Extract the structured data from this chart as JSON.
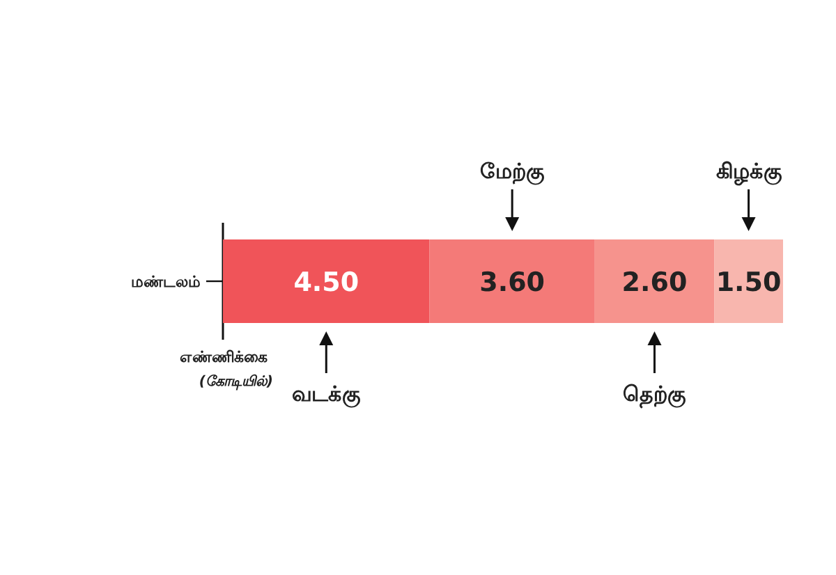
{
  "chart_data": {
    "type": "bar",
    "orientation": "horizontal",
    "stacked": true,
    "categories": [
      "மண்டலம்"
    ],
    "xlabel": "எண்ணிக்கை (கோடியில்)",
    "series": [
      {
        "name": "வடக்கு",
        "color": "#f05459",
        "values": [
          4.5
        ],
        "value_labels": [
          "4.50"
        ]
      },
      {
        "name": "மேற்கு",
        "color": "#f47a78",
        "values": [
          3.6
        ],
        "value_labels": [
          "3.60"
        ]
      },
      {
        "name": "தெற்கு",
        "color": "#f6938d",
        "values": [
          2.6
        ],
        "value_labels": [
          "2.60"
        ]
      },
      {
        "name": "கிழக்கு",
        "color": "#f8b6ae",
        "values": [
          1.5
        ],
        "value_labels": [
          "1.50"
        ]
      }
    ]
  }
}
